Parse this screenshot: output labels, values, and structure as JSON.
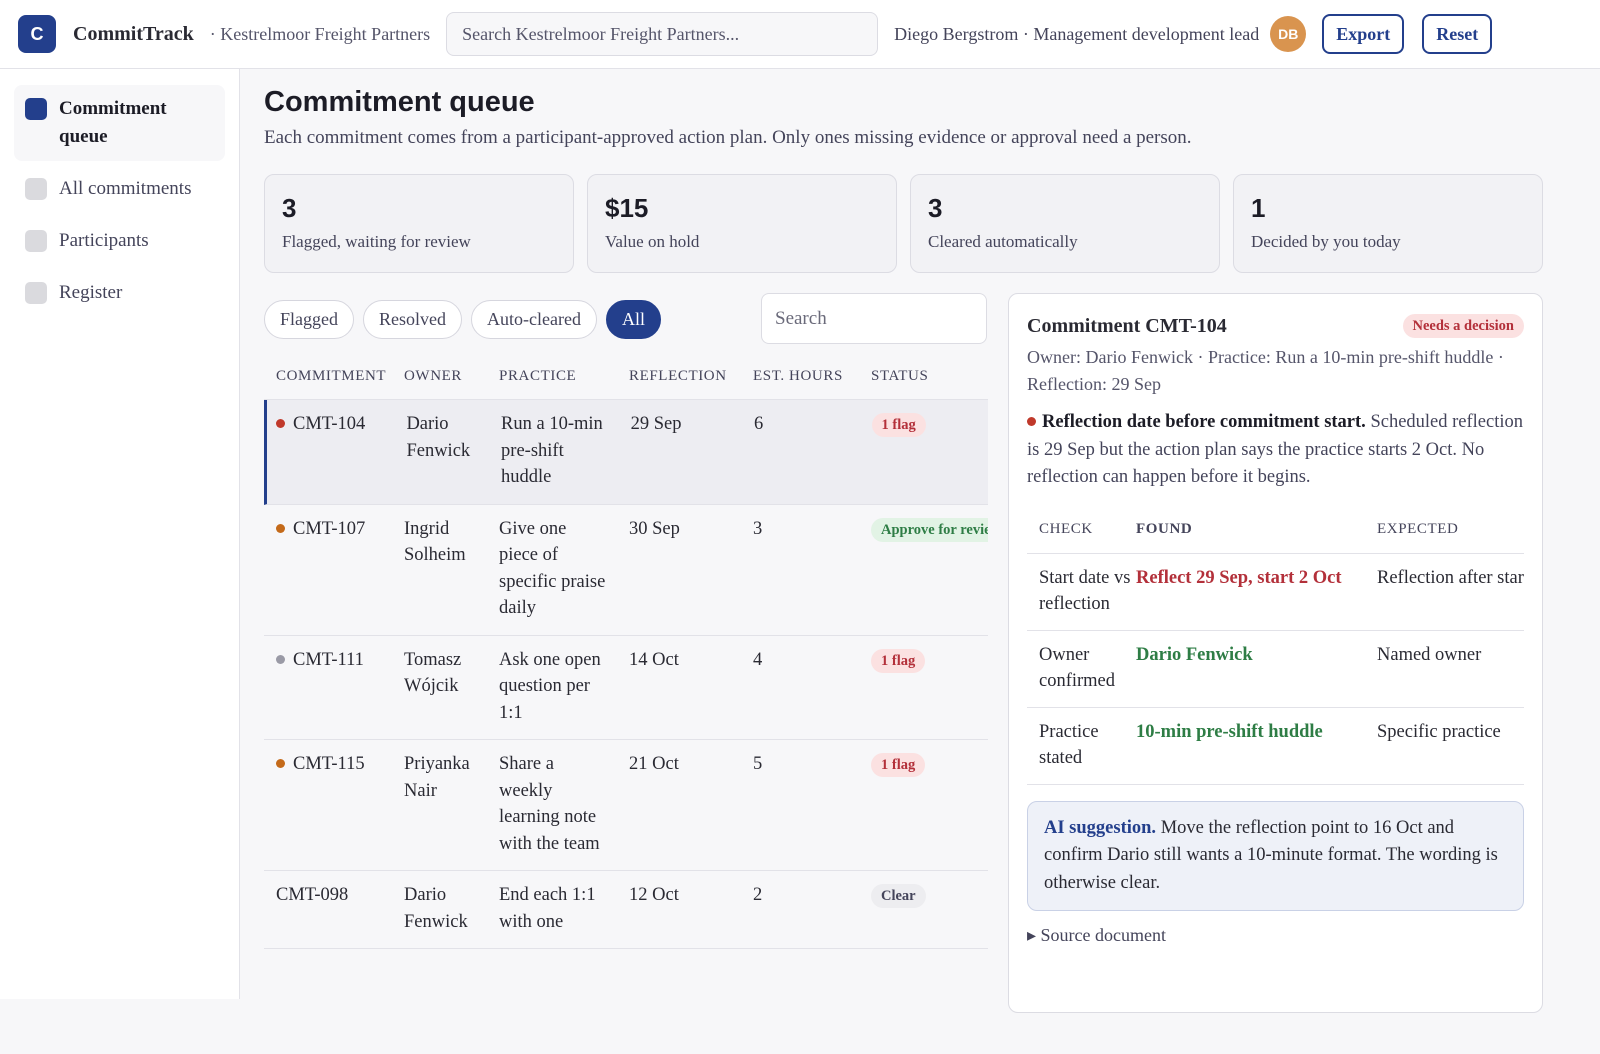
{
  "header": {
    "brand_initial": "C",
    "brand": "CommitTrack",
    "org": "· Kestrelmoor Freight Partners",
    "search_placeholder": "Search Kestrelmoor Freight Partners...",
    "user": "Diego Bergstrom · Management development lead",
    "avatar": "DB",
    "buttons": [
      "Export",
      "Reset"
    ]
  },
  "sidebar": {
    "active": 0,
    "items": [
      "Commitment queue",
      "All commitments",
      "Participants",
      "Register"
    ]
  },
  "main": {
    "title": "Commitment queue",
    "subtitle": "Each commitment comes from a participant-approved action plan. Only ones missing evidence or approval need a person.",
    "stats": [
      {
        "value": 3,
        "label": "Flagged, waiting for review"
      },
      {
        "value": "$15",
        "label": "Value on hold"
      },
      {
        "value": 3,
        "label": "Cleared automatically"
      },
      {
        "value": 1,
        "label": "Decided by you today"
      }
    ],
    "filters": [
      "Flagged",
      "Resolved",
      "Auto-cleared",
      "All"
    ],
    "active_filter": 3,
    "search_placeholder": "Search",
    "table": {
      "columns": [
        "COMMITMENT",
        "OWNER",
        "PRACTICE",
        "REFLECTION",
        "EST. HOURS",
        "STATUS"
      ],
      "rows": [
        {
          "commitment": "CMT-104",
          "owner": "Dario Fenwick",
          "practice": "Run a 10-min pre-shift huddle",
          "reflection": "29 Sep",
          "hours": 6,
          "status": "1 flag",
          "status_tone": "red",
          "dot_color": "#c0392b",
          "selected": true
        },
        {
          "commitment": "CMT-107",
          "owner": "Ingrid Solheim",
          "practice": "Give one piece of specific praise daily",
          "reflection": "30 Sep",
          "hours": 3,
          "status": "Approve for review",
          "status_tone": "green",
          "dot_color": "#c46a1a"
        },
        {
          "commitment": "CMT-111",
          "owner": "Tomasz Wójcik",
          "practice": "Ask one open question per 1:1",
          "reflection": "14 Oct",
          "hours": 4,
          "status": "1 flag",
          "status_tone": "red",
          "dot_color": "#9a9aa6"
        },
        {
          "commitment": "CMT-115",
          "owner": "Priyanka Nair",
          "practice": "Share a weekly learning note with the team",
          "reflection": "21 Oct",
          "hours": 5,
          "status": "1 flag",
          "status_tone": "red",
          "dot_color": "#c46a1a"
        },
        {
          "commitment": "CMT-098",
          "owner": "Dario Fenwick",
          "practice": "End each 1:1 with one",
          "reflection": "12 Oct",
          "hours": 2,
          "status": "Clear",
          "status_tone": "grey"
        }
      ]
    }
  },
  "detail": {
    "title": "Commitment CMT-104",
    "badge": "Needs a decision",
    "meta": "Owner: Dario Fenwick · Practice: Run a 10-min pre-shift huddle · Reflection: 29 Sep",
    "issue_title": "Reflection date before commitment start.",
    "issue_text": "Scheduled reflection is 29 Sep but the action plan says the practice starts 2 Oct. No reflection can happen before it begins.",
    "checks": {
      "columns": [
        "CHECK",
        "FOUND",
        "EXPECTED"
      ],
      "rows": [
        {
          "check": "Start date vs reflection",
          "found": "Reflect 29 Sep, start 2 Oct",
          "found_color": "#b3303a",
          "expected": "Reflection after start"
        },
        {
          "check": "Owner confirmed",
          "found": "Dario Fenwick",
          "found_color": "#2e7d45",
          "expected": "Named owner"
        },
        {
          "check": "Practice stated",
          "found": "10-min pre-shift huddle",
          "found_color": "#2e7d45",
          "expected": "Specific practice"
        }
      ]
    },
    "ai_label": "AI suggestion.",
    "ai_text": "Move the reflection point to 16 Oct and confirm Dario still wants a 10-minute format. The wording is otherwise clear.",
    "source": "Source document"
  }
}
